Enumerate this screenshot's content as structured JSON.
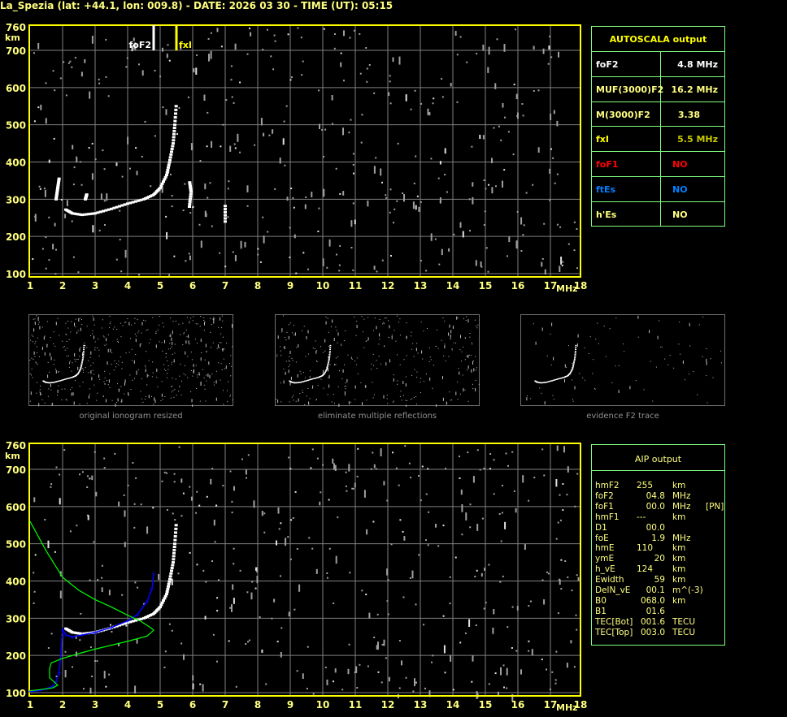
{
  "title": "La_Spezia (lat: +44.1, lon: 009.8) - DATE: 2026 03 30 - TIME (UT): 05:15",
  "colors": {
    "frame": "#ffff00",
    "label": "#ffff80",
    "grid": "#808080",
    "table_border": "#80ff80",
    "trace": "#ffffff",
    "noise": "#a0a0a0",
    "aip_fit": "#0000ff",
    "profile": "#00ff00",
    "foF1": "#ff0000",
    "ftEs": "#0080ff"
  },
  "autoscala": {
    "header": "AUTOSCALA output",
    "rows": [
      {
        "key": "foF2",
        "value": "4.8 MHz",
        "key_color": "#ffffff",
        "value_color": "#ffffff"
      },
      {
        "key": "MUF(3000)F2",
        "value": "16.2 MHz",
        "key_color": "#ffff80",
        "value_color": "#ffff80"
      },
      {
        "key": "M(3000)F2",
        "value": "3.38",
        "key_color": "#ffff80",
        "value_color": "#ffff80"
      },
      {
        "key": "fxI",
        "value": "5.5 MHz",
        "key_color": "#ffff00",
        "value_color": "#c8c800"
      },
      {
        "key": "foF1",
        "value": "NO",
        "key_color": "#ff0000",
        "value_color": "#ff0000"
      },
      {
        "key": "ftEs",
        "value": "NO",
        "key_color": "#0080ff",
        "value_color": "#0080ff"
      },
      {
        "key": "h'Es",
        "value": "NO",
        "key_color": "#ffff80",
        "value_color": "#ffff80"
      }
    ]
  },
  "aip": {
    "header": "AIP output",
    "rows": [
      {
        "key": "hmF2",
        "value": "255",
        "unit": "km",
        "extra": ""
      },
      {
        "key": "foF2",
        "value": "04.8",
        "unit": "MHz",
        "extra": ""
      },
      {
        "key": "foF1",
        "value": "00.0",
        "unit": "MHz",
        "extra": "[PN]"
      },
      {
        "key": "hmF1",
        "value": "---",
        "unit": "km",
        "extra": ""
      },
      {
        "key": "D1",
        "value": "00.0",
        "unit": "",
        "extra": ""
      },
      {
        "key": "foE",
        "value": "1.9",
        "unit": "MHz",
        "extra": ""
      },
      {
        "key": "hmE",
        "value": "110",
        "unit": "km",
        "extra": ""
      },
      {
        "key": "ymE",
        "value": "20",
        "unit": "km",
        "extra": ""
      },
      {
        "key": "h_vE",
        "value": "124",
        "unit": "km",
        "extra": ""
      },
      {
        "key": "Ewidth",
        "value": "59",
        "unit": "km",
        "extra": ""
      },
      {
        "key": "DelN_vE",
        "value": "00.1",
        "unit": "m^(-3)",
        "extra": ""
      },
      {
        "key": "B0",
        "value": "068.0",
        "unit": "km",
        "extra": ""
      },
      {
        "key": "B1",
        "value": "01.6",
        "unit": "",
        "extra": ""
      },
      {
        "key": "TEC[Bot]",
        "value": "001.6",
        "unit": "TECU",
        "extra": ""
      },
      {
        "key": "TEC[Top]",
        "value": "003.0",
        "unit": "TECU",
        "extra": ""
      }
    ]
  },
  "thumbnails": [
    {
      "caption": "original ionogram resized"
    },
    {
      "caption": "eliminate multiple reflections"
    },
    {
      "caption": "evidence F2 trace"
    }
  ],
  "chart_data": [
    {
      "type": "scatter",
      "panel": "top",
      "xlabel": "MHz",
      "ylabel": "km",
      "xlim": [
        1,
        18
      ],
      "ylim": [
        100,
        760
      ],
      "xticks": [
        "1",
        "2",
        "3",
        "4",
        "5",
        "6",
        "7",
        "8",
        "9",
        "10",
        "11",
        "12",
        "13",
        "14",
        "15",
        "16",
        "17",
        "18"
      ],
      "yticks": [
        "760",
        "700",
        "600",
        "500",
        "400",
        "300",
        "200",
        "100"
      ],
      "grid": true,
      "markers": [
        {
          "label": "foF2",
          "x": 4.8,
          "color": "#ffffff"
        },
        {
          "label": "fxI",
          "x": 5.5,
          "color": "#ffff00"
        }
      ],
      "series": [
        {
          "role": "echo trace",
          "color": "#ffffff",
          "points": [
            [
              2.1,
              272
            ],
            [
              2.3,
              262
            ],
            [
              2.6,
              258
            ],
            [
              3.0,
              262
            ],
            [
              3.5,
              274
            ],
            [
              4.0,
              288
            ],
            [
              4.5,
              300
            ],
            [
              4.8,
              312
            ],
            [
              5.0,
              330
            ],
            [
              5.2,
              365
            ],
            [
              5.3,
              405
            ],
            [
              5.4,
              450
            ],
            [
              5.45,
              500
            ],
            [
              5.5,
              560
            ]
          ]
        },
        {
          "role": "echo fragment",
          "color": "#ffffff",
          "points": [
            [
              1.8,
              300
            ],
            [
              1.85,
              330
            ],
            [
              1.9,
              360
            ]
          ]
        },
        {
          "role": "echo fragment",
          "color": "#ffffff",
          "points": [
            [
              2.7,
              300
            ],
            [
              2.75,
              315
            ]
          ]
        },
        {
          "role": "echo fragment",
          "color": "#ffffff",
          "points": [
            [
              5.9,
              280
            ],
            [
              5.95,
              320
            ],
            [
              5.9,
              350
            ]
          ]
        },
        {
          "role": "echo fragment",
          "color": "#ffffff",
          "points": [
            [
              7.0,
              240
            ],
            [
              7.0,
              290
            ]
          ]
        }
      ]
    },
    {
      "type": "line",
      "panel": "bottom",
      "xlabel": "MHz",
      "ylabel": "km",
      "xlim": [
        1,
        18
      ],
      "ylim": [
        100,
        760
      ],
      "xticks": [
        "1",
        "2",
        "3",
        "4",
        "5",
        "6",
        "7",
        "8",
        "9",
        "10",
        "11",
        "12",
        "13",
        "14",
        "15",
        "16",
        "17",
        "18"
      ],
      "yticks": [
        "760",
        "700",
        "600",
        "500",
        "400",
        "300",
        "200",
        "100"
      ],
      "grid": true,
      "series": [
        {
          "role": "echo trace",
          "color": "#ffffff",
          "points": [
            [
              2.1,
              272
            ],
            [
              2.3,
              262
            ],
            [
              2.6,
              258
            ],
            [
              3.0,
              262
            ],
            [
              3.5,
              274
            ],
            [
              4.0,
              288
            ],
            [
              4.5,
              300
            ],
            [
              4.8,
              312
            ],
            [
              5.0,
              330
            ],
            [
              5.2,
              365
            ],
            [
              5.3,
              405
            ],
            [
              5.4,
              450
            ],
            [
              5.45,
              500
            ],
            [
              5.5,
              560
            ]
          ]
        },
        {
          "role": "AIP fitted trace",
          "color": "#0000ff",
          "points": [
            [
              1.0,
              103
            ],
            [
              1.3,
              106
            ],
            [
              1.5,
              110
            ],
            [
              1.7,
              118
            ],
            [
              1.8,
              130
            ],
            [
              1.9,
              155
            ],
            [
              2.0,
              270
            ],
            [
              2.1,
              255
            ],
            [
              2.3,
              250
            ],
            [
              2.6,
              255
            ],
            [
              3.0,
              262
            ],
            [
              3.5,
              275
            ],
            [
              4.0,
              293
            ],
            [
              4.3,
              310
            ],
            [
              4.6,
              345
            ],
            [
              4.75,
              380
            ],
            [
              4.8,
              420
            ]
          ]
        },
        {
          "role": "electron density profile",
          "color": "#00ff00",
          "points": [
            [
              1.0,
              560
            ],
            [
              1.5,
              480
            ],
            [
              2.0,
              410
            ],
            [
              2.5,
              375
            ],
            [
              3.0,
              350
            ],
            [
              3.5,
              330
            ],
            [
              4.0,
              308
            ],
            [
              4.4,
              292
            ],
            [
              4.7,
              275
            ],
            [
              4.8,
              268
            ],
            [
              4.6,
              252
            ],
            [
              4.0,
              238
            ],
            [
              3.0,
              217
            ],
            [
              2.5,
              205
            ],
            [
              2.0,
              192
            ],
            [
              1.65,
              180
            ],
            [
              1.6,
              165
            ],
            [
              1.6,
              140
            ],
            [
              1.75,
              128
            ],
            [
              1.85,
              120
            ],
            [
              1.7,
              113
            ],
            [
              1.3,
              108
            ],
            [
              1.0,
              105
            ]
          ]
        }
      ]
    }
  ]
}
